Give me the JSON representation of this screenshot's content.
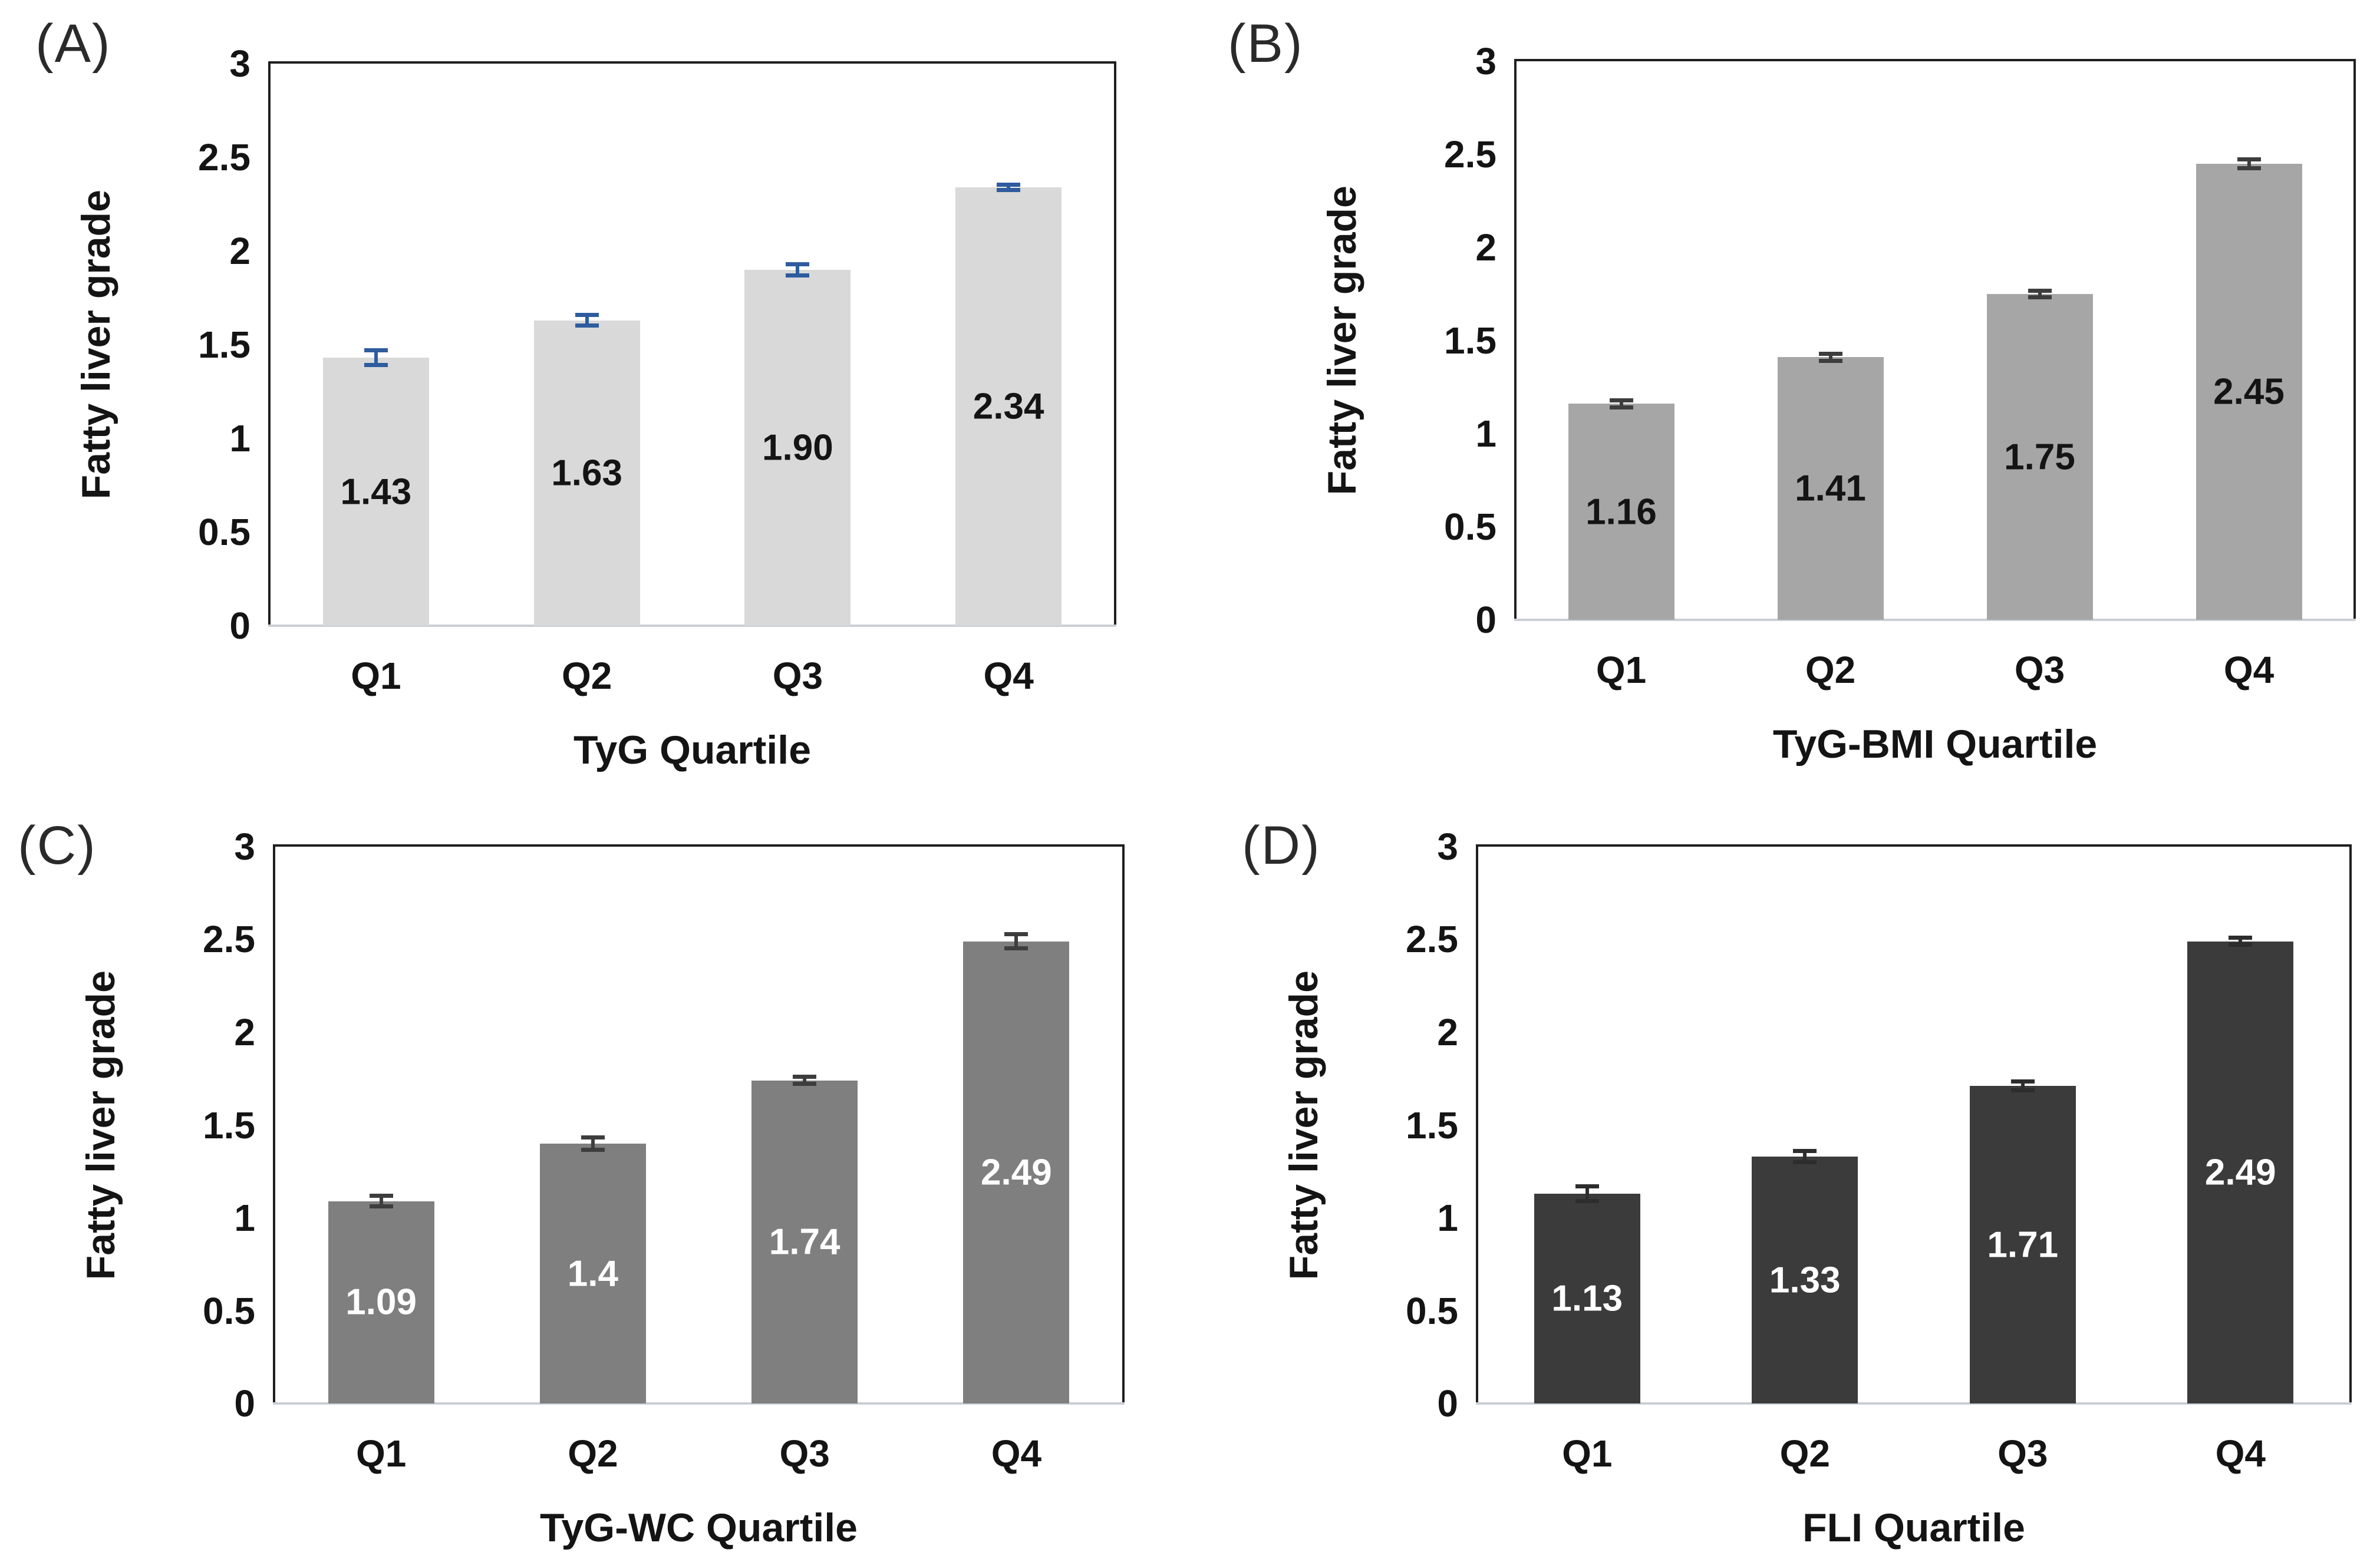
{
  "figure": {
    "description": "Four-panel bar chart figure of mean fatty liver grade across quartiles of four indices",
    "background": "#ffffff",
    "text_color": "#141414",
    "border_color": "#1f1f1f",
    "baseline_color": "#c9cfd6"
  },
  "chart_data": [
    {
      "type": "bar",
      "panel": "(A)",
      "categories": [
        "Q1",
        "Q2",
        "Q3",
        "Q4"
      ],
      "values": [
        1.43,
        1.63,
        1.9,
        2.34
      ],
      "data_labels": [
        "1.43",
        "1.63",
        "1.90",
        "2.34"
      ],
      "errors": [
        0.05,
        0.04,
        0.04,
        0.025
      ],
      "xlabel": "TyG Quartile",
      "ylabel": "Fatty liver grade",
      "ylim": [
        0,
        3
      ],
      "yticks": [
        0,
        0.5,
        1,
        1.5,
        2,
        2.5,
        3
      ],
      "grid": false,
      "legend": "none",
      "bar_color": "#d9d9d9",
      "error_color": "#2e5c9e",
      "label_color": "#141414"
    },
    {
      "type": "bar",
      "panel": "(B)",
      "categories": [
        "Q1",
        "Q2",
        "Q3",
        "Q4"
      ],
      "values": [
        1.16,
        1.41,
        1.75,
        2.45
      ],
      "data_labels": [
        "1.16",
        "1.41",
        "1.75",
        "2.45"
      ],
      "errors": [
        0.03,
        0.03,
        0.03,
        0.035
      ],
      "xlabel": "TyG-BMI Quartile",
      "ylabel": "Fatty liver grade",
      "ylim": [
        0,
        3
      ],
      "yticks": [
        0,
        0.5,
        1,
        1.5,
        2,
        2.5,
        3
      ],
      "grid": false,
      "legend": "none",
      "bar_color": "#a6a6a6",
      "error_color": "#3d3d3d",
      "label_color": "#141414"
    },
    {
      "type": "bar",
      "panel": "(C)",
      "categories": [
        "Q1",
        "Q2",
        "Q3",
        "Q4"
      ],
      "values": [
        1.09,
        1.4,
        1.74,
        2.49
      ],
      "data_labels": [
        "1.09",
        "1.4",
        "1.74",
        "2.49"
      ],
      "errors": [
        0.04,
        0.045,
        0.03,
        0.05
      ],
      "xlabel": "TyG-WC Quartile",
      "ylabel": "Fatty liver grade",
      "ylim": [
        0,
        3
      ],
      "yticks": [
        0,
        0.5,
        1,
        1.5,
        2,
        2.5,
        3
      ],
      "grid": false,
      "legend": "none",
      "bar_color": "#7f7f7f",
      "error_color": "#3d3d3d",
      "label_color": "#ffffff"
    },
    {
      "type": "bar",
      "panel": "(D)",
      "categories": [
        "Q1",
        "Q2",
        "Q3",
        "Q4"
      ],
      "values": [
        1.13,
        1.33,
        1.71,
        2.49
      ],
      "data_labels": [
        "1.13",
        "1.33",
        "1.71",
        "2.49"
      ],
      "errors": [
        0.05,
        0.04,
        0.035,
        0.03
      ],
      "xlabel": "FLI Quartile",
      "ylabel": "Fatty liver grade",
      "ylim": [
        0,
        3
      ],
      "yticks": [
        0,
        0.5,
        1,
        1.5,
        2,
        2.5,
        3
      ],
      "grid": false,
      "legend": "none",
      "bar_color": "#3b3b3b",
      "error_color": "#2d2d2d",
      "label_color": "#ffffff"
    }
  ]
}
